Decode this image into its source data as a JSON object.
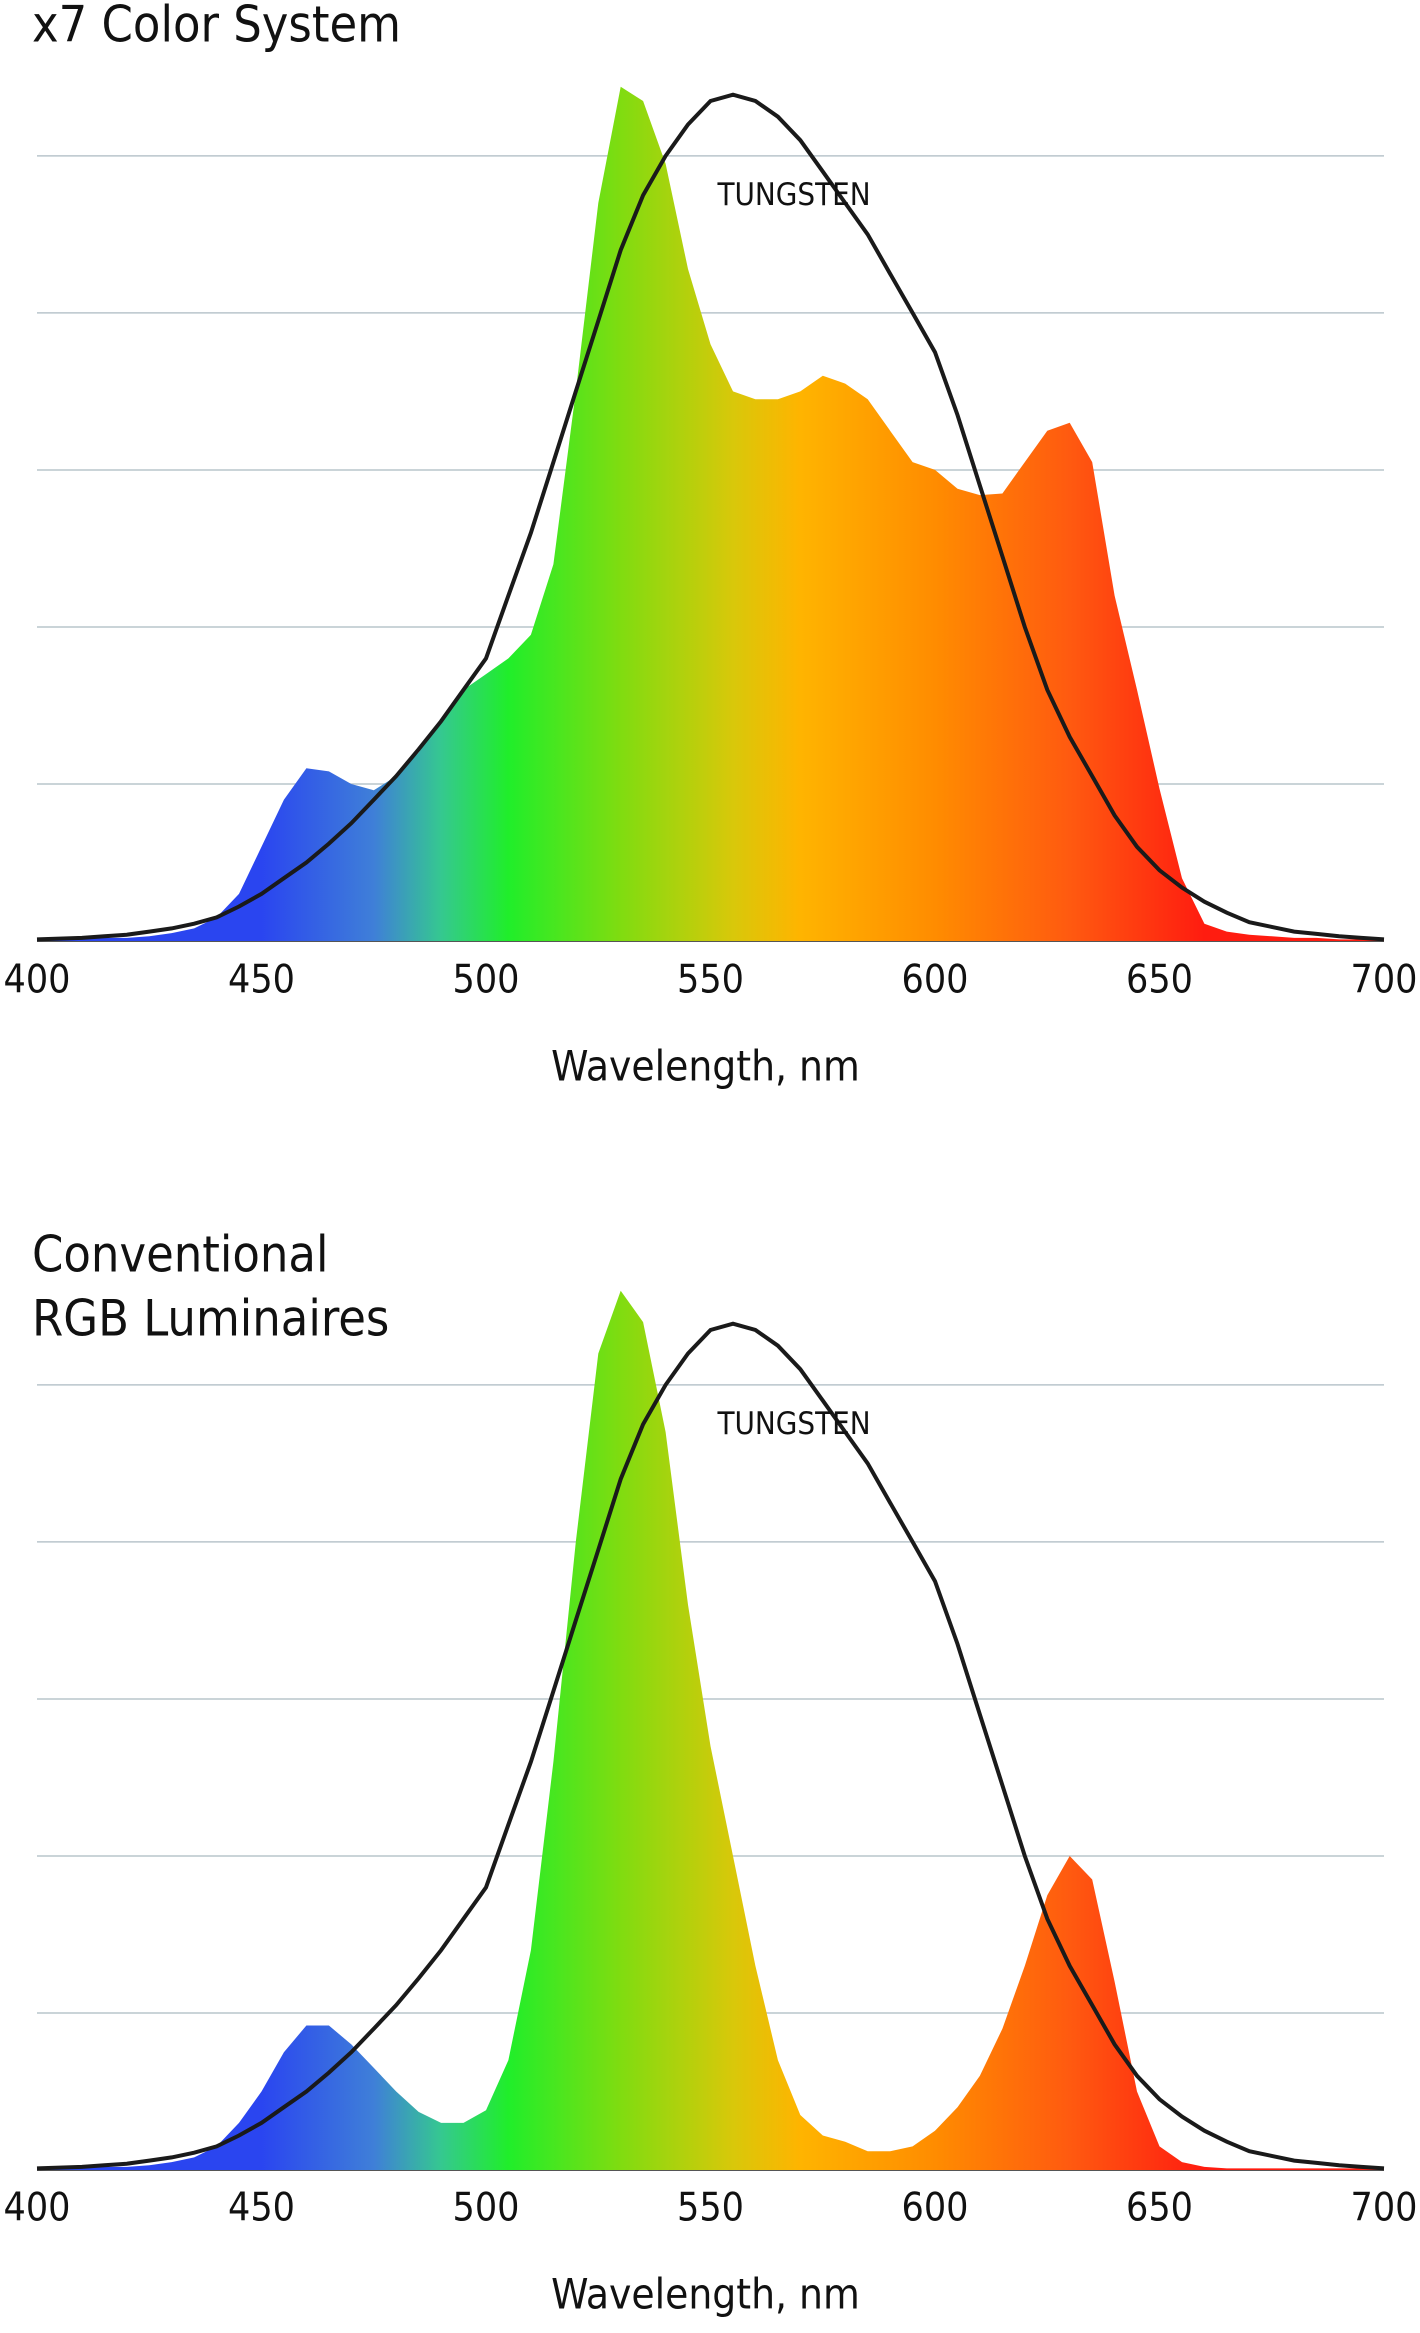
{
  "chart_data": [
    {
      "type": "area",
      "title": [
        "x7 Color System"
      ],
      "x_label": "Wavelength, nm",
      "x": [
        400,
        405,
        410,
        415,
        420,
        425,
        430,
        435,
        440,
        445,
        450,
        455,
        460,
        465,
        470,
        475,
        480,
        485,
        490,
        495,
        500,
        505,
        510,
        515,
        520,
        525,
        530,
        535,
        540,
        545,
        550,
        555,
        560,
        565,
        570,
        575,
        580,
        585,
        590,
        595,
        600,
        605,
        610,
        615,
        620,
        625,
        630,
        635,
        640,
        645,
        650,
        655,
        660,
        665,
        670,
        675,
        680,
        685,
        690,
        695,
        700
      ],
      "series": [
        {
          "gradient": [
            [
              "#2a45f0",
              450
            ],
            [
              "#3f7fd8",
              475
            ],
            [
              "#35c890",
              490
            ],
            [
              "#20ee2a",
              505
            ],
            [
              "#80dc10",
              530
            ],
            [
              "#d8c80a",
              555
            ],
            [
              "#ffb400",
              570
            ],
            [
              "#ff8c00",
              600
            ],
            [
              "#ff5a10",
              630
            ],
            [
              "#ff1c10",
              660
            ]
          ],
          "values": [
            0.01,
            0.01,
            0.01,
            0.02,
            0.02,
            0.03,
            0.05,
            0.08,
            0.15,
            0.3,
            0.6,
            0.9,
            1.1,
            1.08,
            1.0,
            0.96,
            1.05,
            1.2,
            1.4,
            1.6,
            1.7,
            1.8,
            1.95,
            2.4,
            3.5,
            4.7,
            5.44,
            5.35,
            4.95,
            4.28,
            3.8,
            3.5,
            3.45,
            3.45,
            3.5,
            3.6,
            3.55,
            3.45,
            3.25,
            3.05,
            3.0,
            2.88,
            2.84,
            2.85,
            3.05,
            3.25,
            3.3,
            3.05,
            2.2,
            1.6,
            0.97,
            0.4,
            0.11,
            0.06,
            0.04,
            0.03,
            0.02,
            0.02,
            0.01,
            0.01,
            0.01
          ]
        },
        {
          "name": "TUNGSTEN",
          "color": "#1a1a1a",
          "values": [
            0.01,
            0.015,
            0.02,
            0.03,
            0.04,
            0.06,
            0.08,
            0.11,
            0.15,
            0.22,
            0.3,
            0.4,
            0.5,
            0.62,
            0.75,
            0.9,
            1.05,
            1.22,
            1.4,
            1.6,
            1.8,
            2.2,
            2.6,
            3.05,
            3.5,
            3.95,
            4.4,
            4.75,
            5.0,
            5.2,
            5.35,
            5.39,
            5.35,
            5.25,
            5.1,
            4.9,
            4.7,
            4.5,
            4.25,
            4.0,
            3.75,
            3.35,
            2.9,
            2.45,
            2.0,
            1.6,
            1.3,
            1.05,
            0.8,
            0.6,
            0.45,
            0.34,
            0.25,
            0.18,
            0.12,
            0.09,
            0.06,
            0.045,
            0.03,
            0.02,
            0.01
          ]
        }
      ],
      "xlim": [
        400,
        700
      ],
      "xticks": [
        400,
        450,
        500,
        550,
        600,
        650,
        700
      ],
      "ylim": [
        0,
        5.7
      ],
      "yticks": [
        0,
        1,
        2,
        3,
        4,
        5
      ],
      "grid": true
    },
    {
      "type": "area",
      "title": [
        "Conventional",
        "RGB Luminaires"
      ],
      "x_label": "Wavelength, nm",
      "x": [
        400,
        405,
        410,
        415,
        420,
        425,
        430,
        435,
        440,
        445,
        450,
        455,
        460,
        465,
        470,
        475,
        480,
        485,
        490,
        495,
        500,
        505,
        510,
        515,
        520,
        525,
        530,
        535,
        540,
        545,
        550,
        555,
        560,
        565,
        570,
        575,
        580,
        585,
        590,
        595,
        600,
        605,
        610,
        615,
        620,
        625,
        630,
        635,
        640,
        645,
        650,
        655,
        660,
        665,
        670,
        675,
        680,
        685,
        690,
        695,
        700
      ],
      "series": [
        {
          "gradient": [
            [
              "#2a45f0",
              450
            ],
            [
              "#3f7fd8",
              475
            ],
            [
              "#35c890",
              490
            ],
            [
              "#20ee2a",
              505
            ],
            [
              "#80dc10",
              530
            ],
            [
              "#d8c80a",
              555
            ],
            [
              "#ffb400",
              570
            ],
            [
              "#ff8c00",
              600
            ],
            [
              "#ff5a10",
              630
            ],
            [
              "#ff1c10",
              660
            ]
          ],
          "values": [
            0.01,
            0.01,
            0.01,
            0.02,
            0.02,
            0.03,
            0.05,
            0.08,
            0.15,
            0.3,
            0.5,
            0.75,
            0.92,
            0.92,
            0.8,
            0.65,
            0.5,
            0.37,
            0.3,
            0.3,
            0.38,
            0.7,
            1.4,
            2.6,
            4.0,
            5.2,
            5.6,
            5.4,
            4.7,
            3.6,
            2.7,
            2.0,
            1.3,
            0.7,
            0.35,
            0.22,
            0.18,
            0.12,
            0.12,
            0.15,
            0.25,
            0.4,
            0.6,
            0.9,
            1.3,
            1.75,
            2.0,
            1.85,
            1.2,
            0.5,
            0.15,
            0.05,
            0.02,
            0.01,
            0.01,
            0.01,
            0.01,
            0.01,
            0.01,
            0.01,
            0.01
          ]
        },
        {
          "name": "TUNGSTEN",
          "color": "#1a1a1a",
          "values": [
            0.01,
            0.015,
            0.02,
            0.03,
            0.04,
            0.06,
            0.08,
            0.11,
            0.15,
            0.22,
            0.3,
            0.4,
            0.5,
            0.62,
            0.75,
            0.9,
            1.05,
            1.22,
            1.4,
            1.6,
            1.8,
            2.2,
            2.6,
            3.05,
            3.5,
            3.95,
            4.4,
            4.75,
            5.0,
            5.2,
            5.35,
            5.39,
            5.35,
            5.25,
            5.1,
            4.9,
            4.7,
            4.5,
            4.25,
            4.0,
            3.75,
            3.35,
            2.9,
            2.45,
            2.0,
            1.6,
            1.3,
            1.05,
            0.8,
            0.6,
            0.45,
            0.34,
            0.25,
            0.18,
            0.12,
            0.09,
            0.06,
            0.045,
            0.03,
            0.02,
            0.01
          ]
        }
      ],
      "xlim": [
        400,
        700
      ],
      "xticks": [
        400,
        450,
        500,
        550,
        600,
        650,
        700
      ],
      "ylim": [
        0,
        5.7
      ],
      "yticks": [
        0,
        1,
        2,
        3,
        4,
        5
      ],
      "grid": true
    }
  ]
}
